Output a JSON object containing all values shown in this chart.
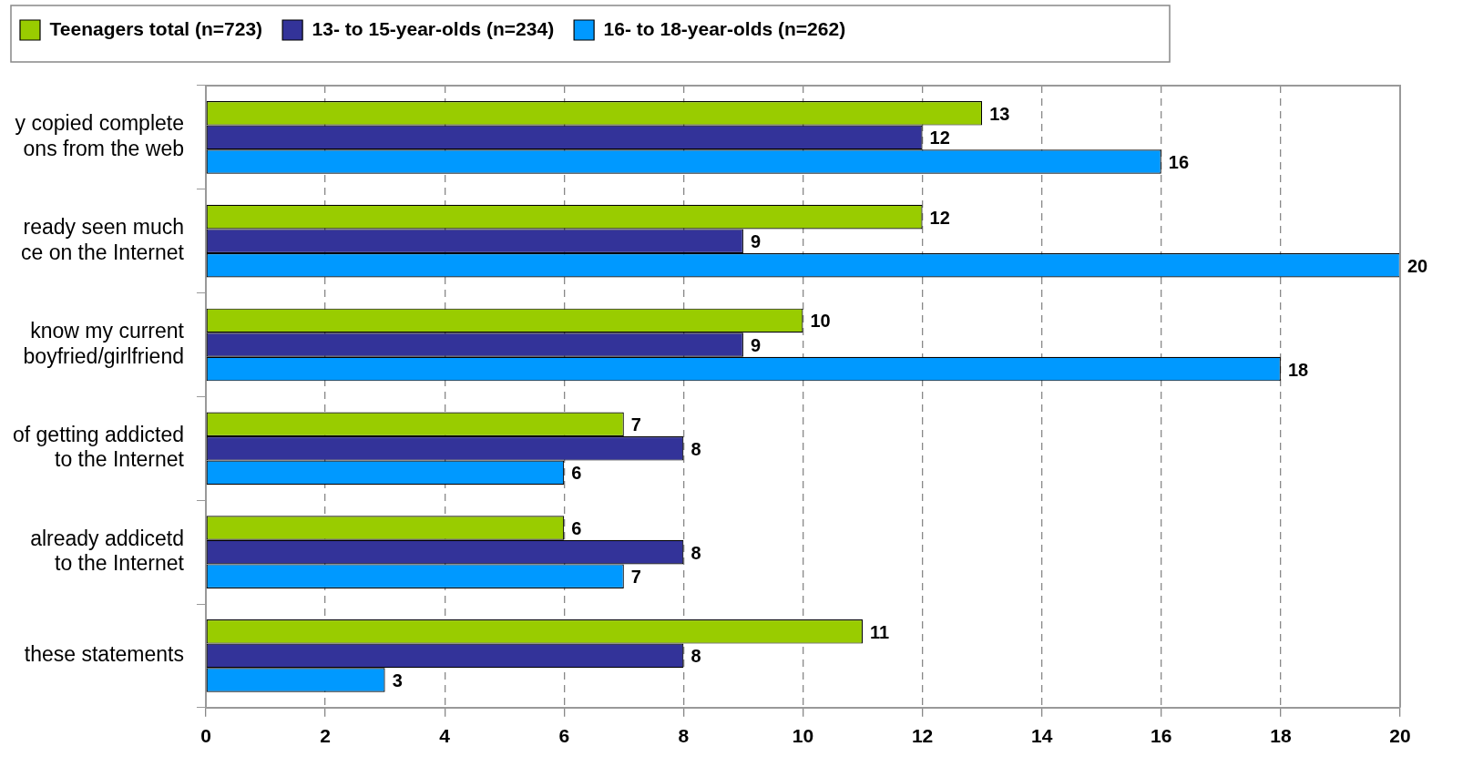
{
  "chart_data": {
    "type": "bar",
    "orientation": "horizontal",
    "categories": [
      "y copied complete\nons from the web",
      "ready seen much\nce on the Internet",
      "know my current\nboyfried/girlfriend",
      "of getting addicted\nto the Internet",
      "already addicetd\nto the Internet",
      "these statements"
    ],
    "series": [
      {
        "name": "Teenagers total (n=723)",
        "color": "#99cc00",
        "values": [
          13,
          12,
          10,
          7,
          6,
          11
        ]
      },
      {
        "name": "13- to 15-year-olds (n=234)",
        "color": "#333399",
        "values": [
          12,
          9,
          9,
          8,
          8,
          8
        ]
      },
      {
        "name": "16- to 18-year-olds (n=262)",
        "color": "#0099ff",
        "values": [
          16,
          20,
          18,
          6,
          7,
          3
        ]
      }
    ],
    "xlim": [
      0,
      20
    ],
    "xticks": [
      0,
      2,
      4,
      6,
      8,
      10,
      12,
      14,
      16,
      18,
      20
    ],
    "grid": "x",
    "legend": "top",
    "data_labels": true
  }
}
